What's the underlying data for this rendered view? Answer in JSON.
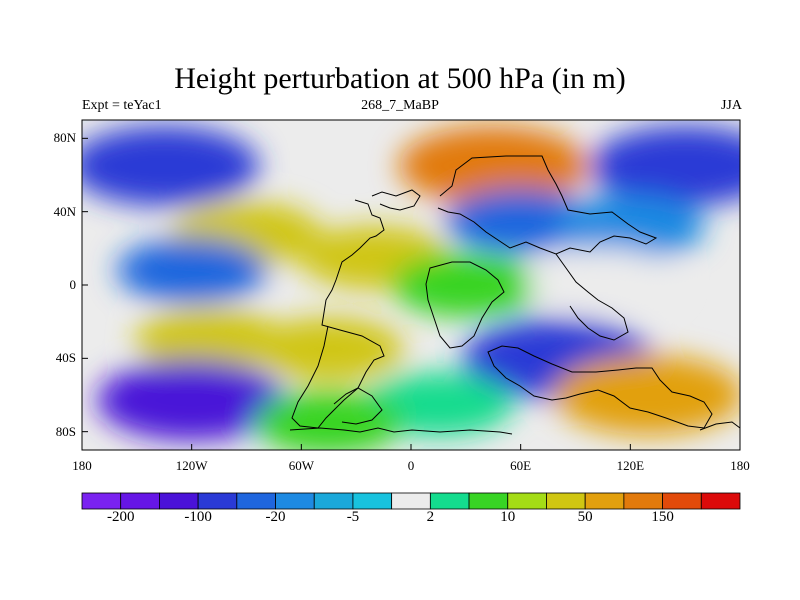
{
  "header": {
    "title": "Height perturbation at 500 hPa (in m)",
    "left": "Expt = teYac1",
    "center": "268_7_MaBP",
    "right": "JJA"
  },
  "axes": {
    "lat_labels": [
      {
        "text": "80N",
        "lat": 80
      },
      {
        "text": "40N",
        "lat": 40
      },
      {
        "text": "0",
        "lat": 0
      },
      {
        "text": "40S",
        "lat": -40
      },
      {
        "text": "80S",
        "lat": -80
      }
    ],
    "lon_labels": [
      {
        "text": "180",
        "lon": -180
      },
      {
        "text": "120W",
        "lon": -120
      },
      {
        "text": "60W",
        "lon": -60
      },
      {
        "text": "0",
        "lon": 0
      },
      {
        "text": "60E",
        "lon": 60
      },
      {
        "text": "120E",
        "lon": 120
      },
      {
        "text": "180",
        "lon": 180
      }
    ]
  },
  "colorbar": {
    "colors": [
      "#7a22f0",
      "#6616e6",
      "#4a12d8",
      "#2a3ad6",
      "#1f66de",
      "#1e8ae2",
      "#1aa8da",
      "#18c2de",
      "#ececec",
      "#14dc8e",
      "#38d424",
      "#a4dc16",
      "#d0c612",
      "#e2a00e",
      "#e27a0c",
      "#e24a0a",
      "#dc0a0a"
    ],
    "labels": [
      {
        "text": "-200",
        "boundary": 1
      },
      {
        "text": "-100",
        "boundary": 3
      },
      {
        "text": "-20",
        "boundary": 5
      },
      {
        "text": "-5",
        "boundary": 7
      },
      {
        "text": "2",
        "boundary": 9
      },
      {
        "text": "10",
        "boundary": 11
      },
      {
        "text": "50",
        "boundary": 13
      },
      {
        "text": "150",
        "boundary": 15
      }
    ]
  },
  "field_blobs": [
    {
      "lon": -135,
      "lat": 65,
      "value": -70
    },
    {
      "lon": 150,
      "lat": 65,
      "value": -70
    },
    {
      "lon": 45,
      "lat": 65,
      "value": 150
    },
    {
      "lon": -90,
      "lat": 28,
      "value": 45
    },
    {
      "lon": -20,
      "lat": 15,
      "value": 30
    },
    {
      "lon": 60,
      "lat": 35,
      "value": -30
    },
    {
      "lon": 120,
      "lat": 32,
      "value": -15
    },
    {
      "lon": -120,
      "lat": 8,
      "value": -35
    },
    {
      "lon": 30,
      "lat": 0,
      "value": 10
    },
    {
      "lon": 105,
      "lat": 3,
      "value": 1
    },
    {
      "lon": -110,
      "lat": -30,
      "value": 40
    },
    {
      "lon": -45,
      "lat": -35,
      "value": 45
    },
    {
      "lon": 80,
      "lat": -40,
      "value": -90
    },
    {
      "lon": 130,
      "lat": -60,
      "value": 70
    },
    {
      "lon": -120,
      "lat": -63,
      "value": -110
    },
    {
      "lon": 15,
      "lat": -65,
      "value": 4
    },
    {
      "lon": -45,
      "lat": -75,
      "value": 8
    }
  ]
}
